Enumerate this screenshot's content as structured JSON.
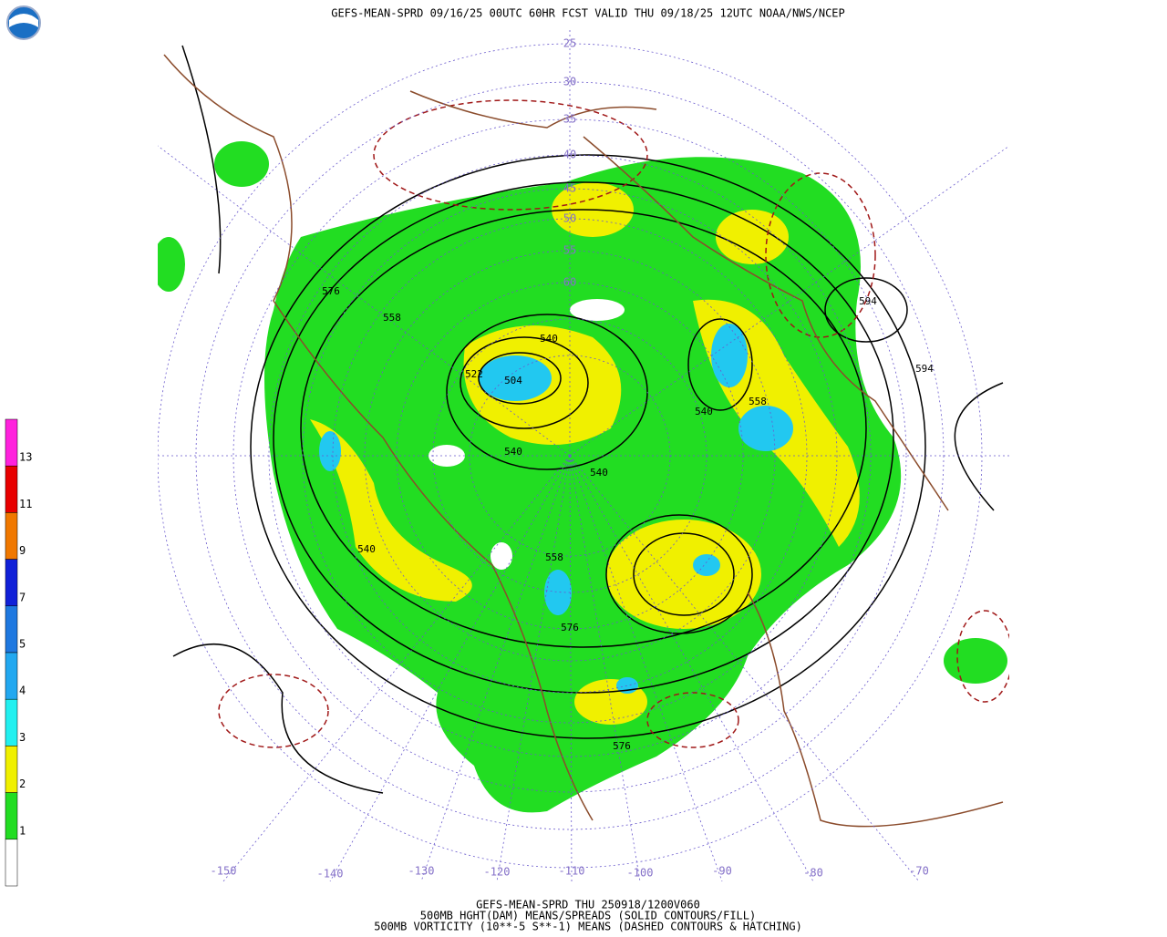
{
  "header": {
    "title": "GEFS-MEAN-SPRD 09/16/25 00UTC 60HR FCST VALID THU 09/18/25 12UTC NOAA/NWS/NCEP"
  },
  "colorbar": {
    "labels": [
      "13",
      "11",
      "9",
      "7",
      "5",
      "4",
      "3",
      "2",
      "1"
    ]
  },
  "map": {
    "lat_labels": [
      "25",
      "30",
      "35",
      "40",
      "45",
      "50",
      "55",
      "60"
    ],
    "lon_labels": [
      "-150",
      "-140",
      "-130",
      "-120",
      "-110",
      "-100",
      "-90",
      "-80",
      "-70"
    ],
    "contour_labels": [
      "576",
      "558",
      "540",
      "522",
      "504",
      "540",
      "540",
      "540",
      "558",
      "594",
      "594",
      "540",
      "558",
      "576",
      "576"
    ]
  },
  "footer": {
    "lines": [
      "GEFS-MEAN-SPRD THU 250918/1200V060",
      "500MB HGHT(DAM) MEANS/SPREADS (SOLID CONTOURS/FILL)",
      "500MB VORTICITY (10**-5 S**-1) MEANS (DASHED CONTOURS & HATCHING)"
    ]
  }
}
